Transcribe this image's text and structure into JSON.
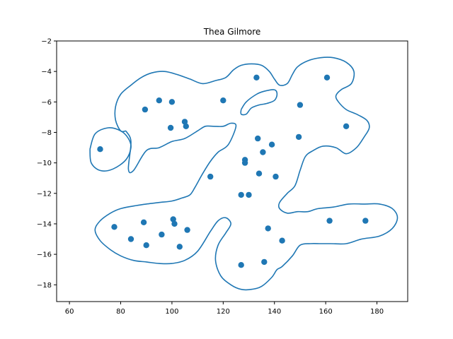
{
  "chart_data": {
    "type": "scatter",
    "title": "Thea Gilmore",
    "xlabel": "",
    "ylabel": "",
    "xlim": [
      55,
      192
    ],
    "ylim": [
      -19.1,
      -2.0
    ],
    "xticks": [
      60,
      80,
      100,
      120,
      140,
      160,
      180
    ],
    "yticks": [
      -18,
      -16,
      -14,
      -12,
      -10,
      -8,
      -6,
      -4,
      -2
    ],
    "grid": false,
    "color": "#1f77b4",
    "points": {
      "x": [
        72,
        89.5,
        95,
        100,
        99.5,
        105,
        105.5,
        120,
        133,
        160.5,
        150,
        168,
        133.5,
        139,
        135.5,
        128.5,
        128.5,
        134,
        140.5,
        115,
        127,
        130,
        149.5,
        77.5,
        89,
        84,
        90,
        96,
        100.5,
        101,
        106,
        103,
        137.5,
        143,
        136,
        127,
        161.5,
        175.5
      ],
      "y": [
        -9.1,
        -6.5,
        -5.9,
        -6.0,
        -7.7,
        -7.3,
        -7.6,
        -5.9,
        -4.4,
        -4.4,
        -6.2,
        -7.6,
        -8.4,
        -8.8,
        -9.3,
        -9.8,
        -10.0,
        -10.7,
        -10.9,
        -10.9,
        -12.1,
        -12.1,
        -8.3,
        -14.2,
        -13.9,
        -15.0,
        -15.4,
        -14.7,
        -13.7,
        -14.0,
        -14.4,
        -15.5,
        -14.3,
        -15.1,
        -16.5,
        -16.7,
        -13.8,
        -13.8
      ]
    },
    "contours": [
      [
        [
          68,
          -9.1
        ],
        [
          70,
          -8.1
        ],
        [
          75,
          -7.7
        ],
        [
          80,
          -7.9
        ],
        [
          83,
          -8.4
        ],
        [
          84,
          -9.0
        ],
        [
          82,
          -9.8
        ],
        [
          77,
          -10.4
        ],
        [
          72,
          -10.5
        ],
        [
          68.5,
          -10.0
        ],
        [
          68,
          -9.1
        ]
      ],
      [
        [
          82,
          -7.9
        ],
        [
          84,
          -8.6
        ],
        [
          83,
          -10.4
        ],
        [
          85,
          -10.5
        ],
        [
          90,
          -9.2
        ],
        [
          95,
          -9.0
        ],
        [
          100,
          -8.6
        ],
        [
          105,
          -8.4
        ],
        [
          110,
          -7.9
        ],
        [
          113,
          -7.6
        ],
        [
          116,
          -7.6
        ],
        [
          120,
          -7.6
        ],
        [
          123,
          -7.4
        ],
        [
          125,
          -7.6
        ],
        [
          122,
          -8.8
        ],
        [
          118,
          -9.3
        ],
        [
          115,
          -9.9
        ],
        [
          112,
          -10.7
        ],
        [
          109,
          -11.6
        ],
        [
          107,
          -12.1
        ],
        [
          104,
          -12.3
        ],
        [
          100,
          -12.5
        ],
        [
          95,
          -12.6
        ],
        [
          90,
          -12.7
        ],
        [
          86,
          -12.8
        ],
        [
          80,
          -13.0
        ],
        [
          76,
          -13.3
        ],
        [
          72,
          -13.8
        ],
        [
          70,
          -14.4
        ],
        [
          72,
          -15.1
        ],
        [
          76,
          -15.7
        ],
        [
          80,
          -16.1
        ],
        [
          85,
          -16.4
        ],
        [
          90,
          -16.5
        ],
        [
          95,
          -16.6
        ],
        [
          100,
          -16.6
        ],
        [
          105,
          -16.4
        ],
        [
          110,
          -15.8
        ],
        [
          115,
          -14.5
        ],
        [
          118,
          -13.8
        ],
        [
          121,
          -13.6
        ],
        [
          123,
          -14.0
        ],
        [
          121,
          -14.6
        ],
        [
          118,
          -15.4
        ],
        [
          117,
          -16.4
        ],
        [
          119,
          -17.4
        ],
        [
          123,
          -18.0
        ],
        [
          127,
          -18.3
        ],
        [
          131,
          -18.3
        ],
        [
          135,
          -18.1
        ],
        [
          139,
          -17.5
        ],
        [
          141,
          -17.0
        ],
        [
          143,
          -16.8
        ],
        [
          147,
          -16.1
        ],
        [
          150,
          -15.4
        ],
        [
          154,
          -15.3
        ],
        [
          158,
          -15.3
        ],
        [
          162,
          -15.3
        ],
        [
          168,
          -15.3
        ],
        [
          174,
          -15.0
        ],
        [
          181,
          -14.8
        ],
        [
          186,
          -14.3
        ],
        [
          188,
          -13.6
        ],
        [
          186,
          -13.0
        ],
        [
          181,
          -12.7
        ],
        [
          175,
          -12.7
        ],
        [
          169,
          -12.7
        ],
        [
          163,
          -12.9
        ],
        [
          157,
          -13.0
        ],
        [
          153,
          -13.2
        ],
        [
          149,
          -13.2
        ],
        [
          145,
          -13.3
        ],
        [
          142,
          -13.0
        ],
        [
          142,
          -12.6
        ],
        [
          145,
          -12.0
        ],
        [
          148,
          -11.5
        ],
        [
          150,
          -10.5
        ],
        [
          152,
          -9.6
        ],
        [
          155,
          -9.2
        ],
        [
          159,
          -8.9
        ],
        [
          164,
          -9.0
        ],
        [
          168,
          -9.4
        ],
        [
          172,
          -9.0
        ],
        [
          175,
          -8.3
        ],
        [
          177,
          -7.7
        ],
        [
          176,
          -7.2
        ],
        [
          172,
          -6.8
        ],
        [
          168,
          -6.5
        ],
        [
          165,
          -6.0
        ],
        [
          164,
          -5.6
        ],
        [
          166,
          -5.2
        ],
        [
          170,
          -4.8
        ],
        [
          171,
          -4.0
        ],
        [
          168,
          -3.4
        ],
        [
          163,
          -3.1
        ],
        [
          158,
          -3.1
        ],
        [
          153,
          -3.3
        ],
        [
          149,
          -3.7
        ],
        [
          147,
          -4.2
        ],
        [
          145,
          -4.8
        ],
        [
          142,
          -4.9
        ],
        [
          140,
          -4.5
        ],
        [
          138,
          -4.0
        ],
        [
          135,
          -3.6
        ],
        [
          131,
          -3.5
        ],
        [
          127,
          -3.6
        ],
        [
          124,
          -3.9
        ],
        [
          121,
          -4.4
        ],
        [
          117,
          -4.6
        ],
        [
          112,
          -4.8
        ],
        [
          107,
          -4.5
        ],
        [
          102,
          -4.2
        ],
        [
          97,
          -4.0
        ],
        [
          92,
          -4.1
        ],
        [
          88,
          -4.4
        ],
        [
          84,
          -4.9
        ],
        [
          80,
          -5.5
        ],
        [
          78,
          -6.3
        ],
        [
          78,
          -7.2
        ],
        [
          80,
          -7.9
        ],
        [
          82,
          -7.9
        ]
      ],
      [
        [
          127,
          -6.5
        ],
        [
          129,
          -6.0
        ],
        [
          133,
          -5.5
        ],
        [
          136,
          -5.3
        ],
        [
          140,
          -5.2
        ],
        [
          141,
          -5.5
        ],
        [
          140,
          -5.9
        ],
        [
          137,
          -6.1
        ],
        [
          134,
          -6.2
        ],
        [
          131,
          -6.4
        ],
        [
          129,
          -6.8
        ],
        [
          127,
          -6.8
        ],
        [
          127,
          -6.5
        ]
      ]
    ]
  }
}
